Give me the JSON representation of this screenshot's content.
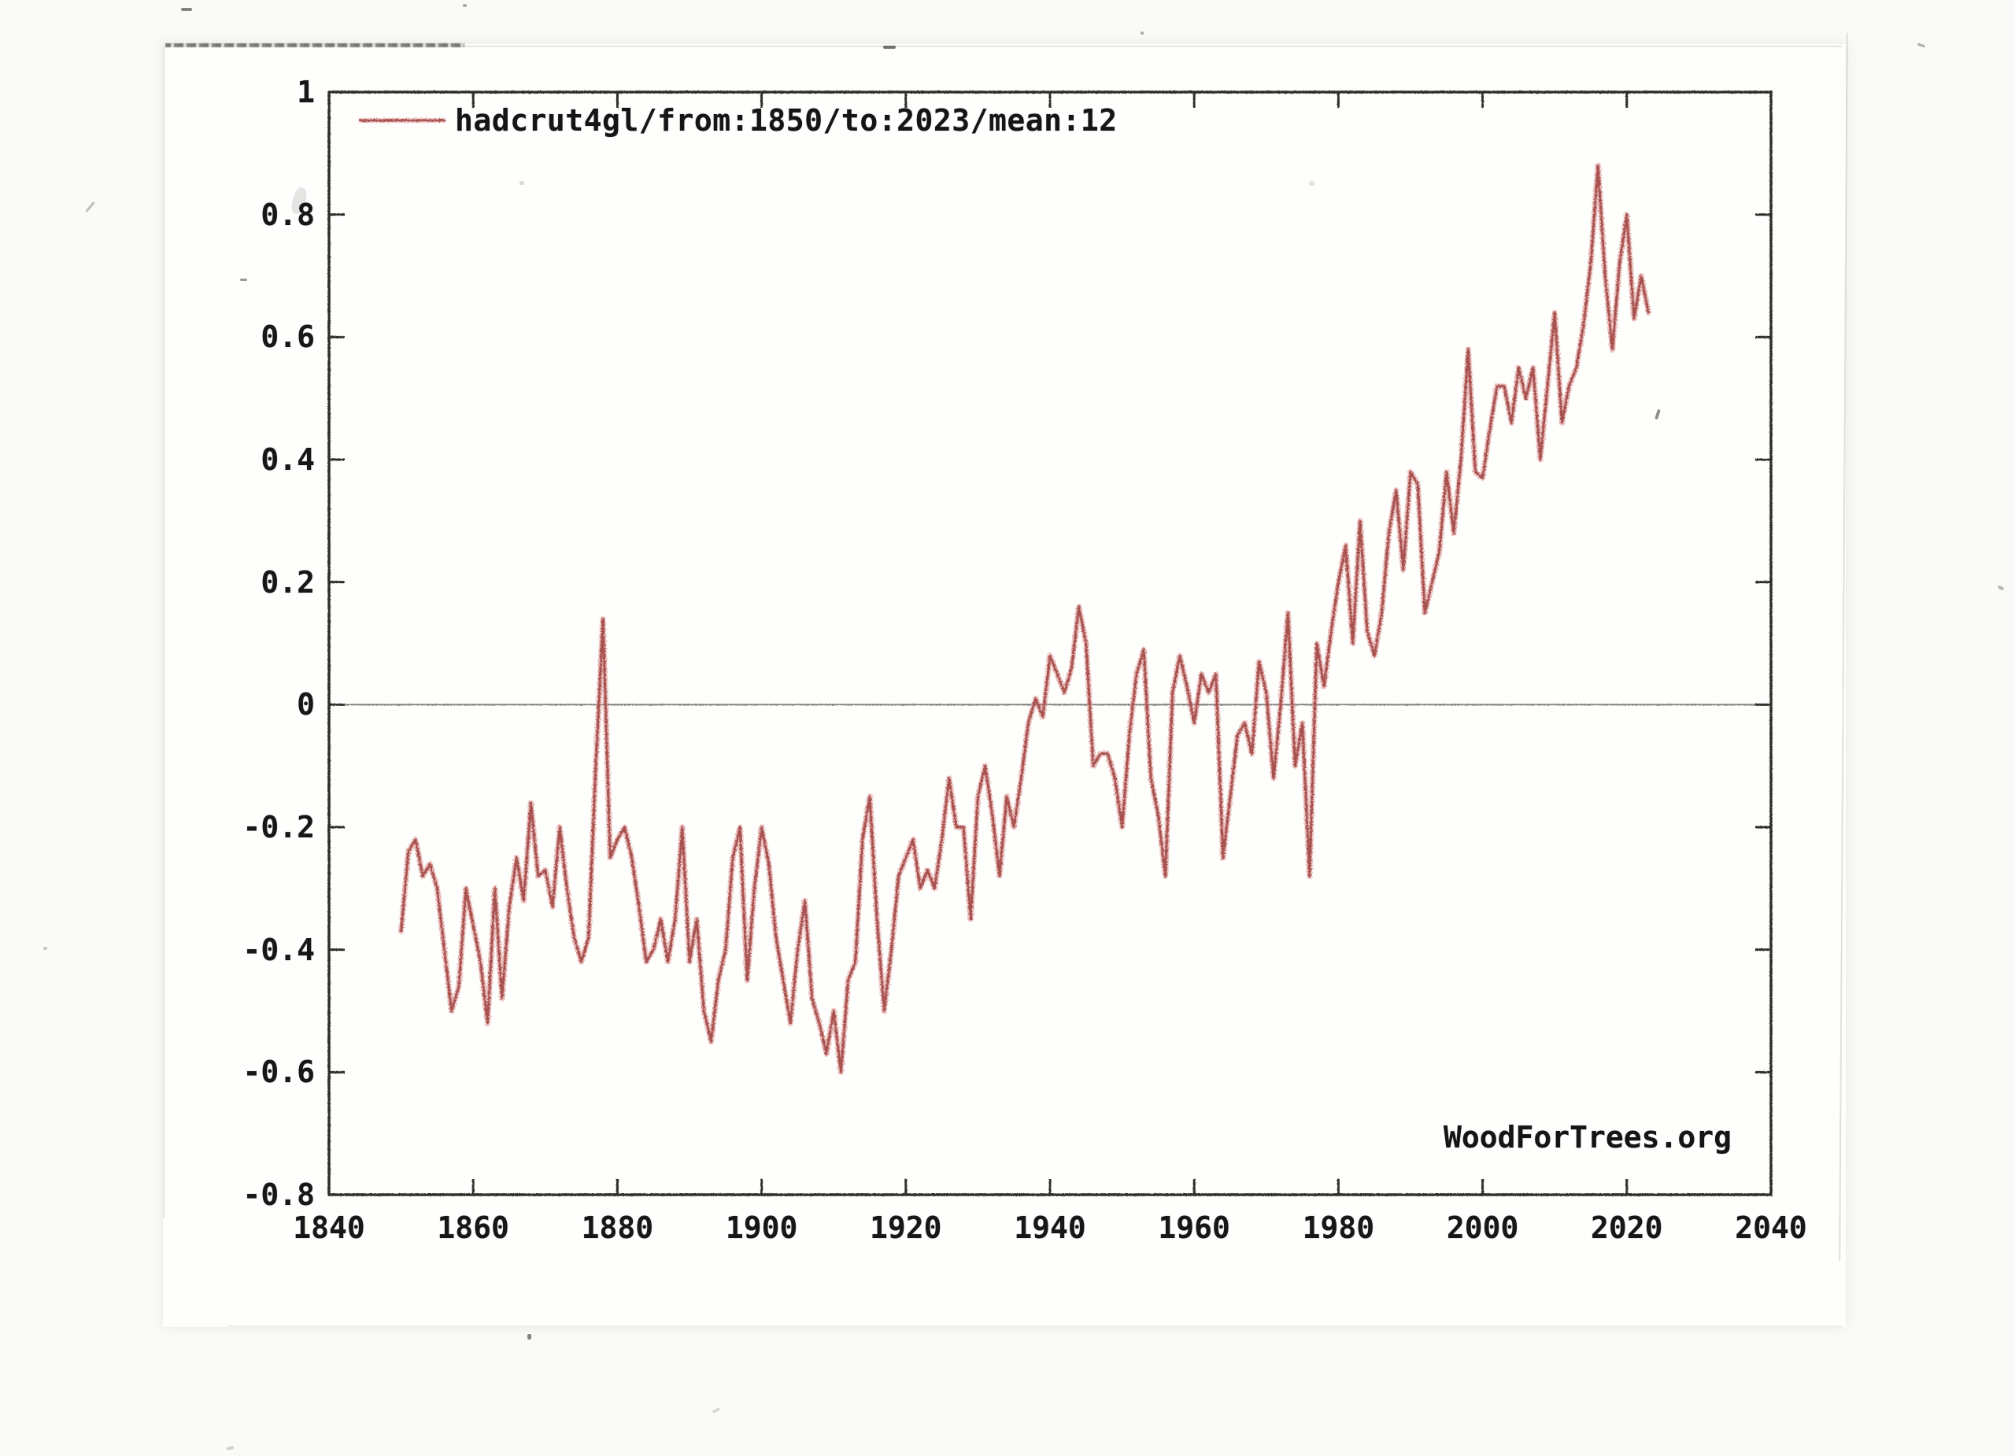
{
  "page": {
    "background_color": "#fafaf8",
    "paper_color": "#fefefd",
    "description": "Scanned printout of a WoodForTrees.org temperature anomaly graph"
  },
  "colors": {
    "series_red_core": "#d98a86",
    "series_red_edge": "#a14845",
    "frame": "#2e2e2c",
    "zero_line": "#7e7e7c",
    "text": "#171717"
  },
  "legend": {
    "label": "hadcrut4gl/from:1850/to:2023/mean:12"
  },
  "watermark": "WoodForTrees.org",
  "chart_data": {
    "type": "line",
    "title": "",
    "xlabel": "",
    "ylabel": "",
    "xlim": [
      1840,
      2040
    ],
    "ylim": [
      -0.8,
      1
    ],
    "x_ticks": [
      1840,
      1860,
      1880,
      1900,
      1920,
      1940,
      1960,
      1980,
      2000,
      2020,
      2040
    ],
    "x_tick_labels": [
      "1840",
      "1860",
      "1880",
      "1900",
      "1920",
      "1940",
      "1960",
      "1980",
      "2000",
      "2020",
      "2040"
    ],
    "y_ticks": [
      1,
      0.8,
      0.6,
      0.4,
      0.2,
      0,
      -0.2,
      -0.4,
      -0.6,
      -0.8
    ],
    "y_tick_labels": [
      "1",
      "0.8",
      "0.6",
      "0.4",
      "0.2",
      "0",
      "-0.2",
      "-0.4",
      "-0.6",
      "-0.8"
    ],
    "grid": "zero-baseline-only",
    "legend_position": "top-left-inside",
    "series": [
      {
        "name": "hadcrut4gl/from:1850/to:2023/mean:12",
        "color": "#a14845",
        "x": [
          1850,
          1851,
          1852,
          1853,
          1854,
          1855,
          1856,
          1857,
          1858,
          1859,
          1860,
          1861,
          1862,
          1863,
          1864,
          1865,
          1866,
          1867,
          1868,
          1869,
          1870,
          1871,
          1872,
          1873,
          1874,
          1875,
          1876,
          1877,
          1878,
          1879,
          1880,
          1881,
          1882,
          1883,
          1884,
          1885,
          1886,
          1887,
          1888,
          1889,
          1890,
          1891,
          1892,
          1893,
          1894,
          1895,
          1896,
          1897,
          1898,
          1899,
          1900,
          1901,
          1902,
          1903,
          1904,
          1905,
          1906,
          1907,
          1908,
          1909,
          1910,
          1911,
          1912,
          1913,
          1914,
          1915,
          1916,
          1917,
          1918,
          1919,
          1920,
          1921,
          1922,
          1923,
          1924,
          1925,
          1926,
          1927,
          1928,
          1929,
          1930,
          1931,
          1932,
          1933,
          1934,
          1935,
          1936,
          1937,
          1938,
          1939,
          1940,
          1941,
          1942,
          1943,
          1944,
          1945,
          1946,
          1947,
          1948,
          1949,
          1950,
          1951,
          1952,
          1953,
          1954,
          1955,
          1956,
          1957,
          1958,
          1959,
          1960,
          1961,
          1962,
          1963,
          1964,
          1965,
          1966,
          1967,
          1968,
          1969,
          1970,
          1971,
          1972,
          1973,
          1974,
          1975,
          1976,
          1977,
          1978,
          1979,
          1980,
          1981,
          1982,
          1983,
          1984,
          1985,
          1986,
          1987,
          1988,
          1989,
          1990,
          1991,
          1992,
          1993,
          1994,
          1995,
          1996,
          1997,
          1998,
          1999,
          2000,
          2001,
          2002,
          2003,
          2004,
          2005,
          2006,
          2007,
          2008,
          2009,
          2010,
          2011,
          2012,
          2013,
          2014,
          2015,
          2016,
          2017,
          2018,
          2019,
          2020,
          2021,
          2022,
          2023
        ],
        "values": [
          -0.37,
          -0.24,
          -0.22,
          -0.28,
          -0.26,
          -0.3,
          -0.4,
          -0.5,
          -0.46,
          -0.3,
          -0.36,
          -0.42,
          -0.52,
          -0.3,
          -0.48,
          -0.33,
          -0.25,
          -0.32,
          -0.16,
          -0.28,
          -0.27,
          -0.33,
          -0.2,
          -0.3,
          -0.38,
          -0.42,
          -0.38,
          -0.1,
          0.14,
          -0.25,
          -0.22,
          -0.2,
          -0.25,
          -0.33,
          -0.42,
          -0.4,
          -0.35,
          -0.42,
          -0.35,
          -0.2,
          -0.42,
          -0.35,
          -0.5,
          -0.55,
          -0.45,
          -0.4,
          -0.25,
          -0.2,
          -0.45,
          -0.3,
          -0.2,
          -0.26,
          -0.38,
          -0.45,
          -0.52,
          -0.4,
          -0.32,
          -0.48,
          -0.52,
          -0.57,
          -0.5,
          -0.6,
          -0.45,
          -0.42,
          -0.22,
          -0.15,
          -0.35,
          -0.5,
          -0.4,
          -0.28,
          -0.25,
          -0.22,
          -0.3,
          -0.27,
          -0.3,
          -0.22,
          -0.12,
          -0.2,
          -0.2,
          -0.35,
          -0.15,
          -0.1,
          -0.18,
          -0.28,
          -0.15,
          -0.2,
          -0.12,
          -0.03,
          0.01,
          -0.02,
          0.08,
          0.05,
          0.02,
          0.06,
          0.16,
          0.1,
          -0.1,
          -0.08,
          -0.08,
          -0.12,
          -0.2,
          -0.05,
          0.05,
          0.09,
          -0.12,
          -0.18,
          -0.28,
          0.02,
          0.08,
          0.03,
          -0.03,
          0.05,
          0.02,
          0.05,
          -0.25,
          -0.15,
          -0.05,
          -0.03,
          -0.08,
          0.07,
          0.02,
          -0.12,
          0.0,
          0.15,
          -0.1,
          -0.03,
          -0.28,
          0.1,
          0.03,
          0.12,
          0.2,
          0.26,
          0.1,
          0.3,
          0.12,
          0.08,
          0.15,
          0.28,
          0.35,
          0.22,
          0.38,
          0.36,
          0.15,
          0.2,
          0.25,
          0.38,
          0.28,
          0.4,
          0.58,
          0.38,
          0.37,
          0.45,
          0.52,
          0.52,
          0.46,
          0.55,
          0.5,
          0.55,
          0.4,
          0.52,
          0.64,
          0.46,
          0.52,
          0.55,
          0.62,
          0.72,
          0.88,
          0.7,
          0.58,
          0.72,
          0.8,
          0.63,
          0.7,
          0.64
        ]
      }
    ]
  }
}
